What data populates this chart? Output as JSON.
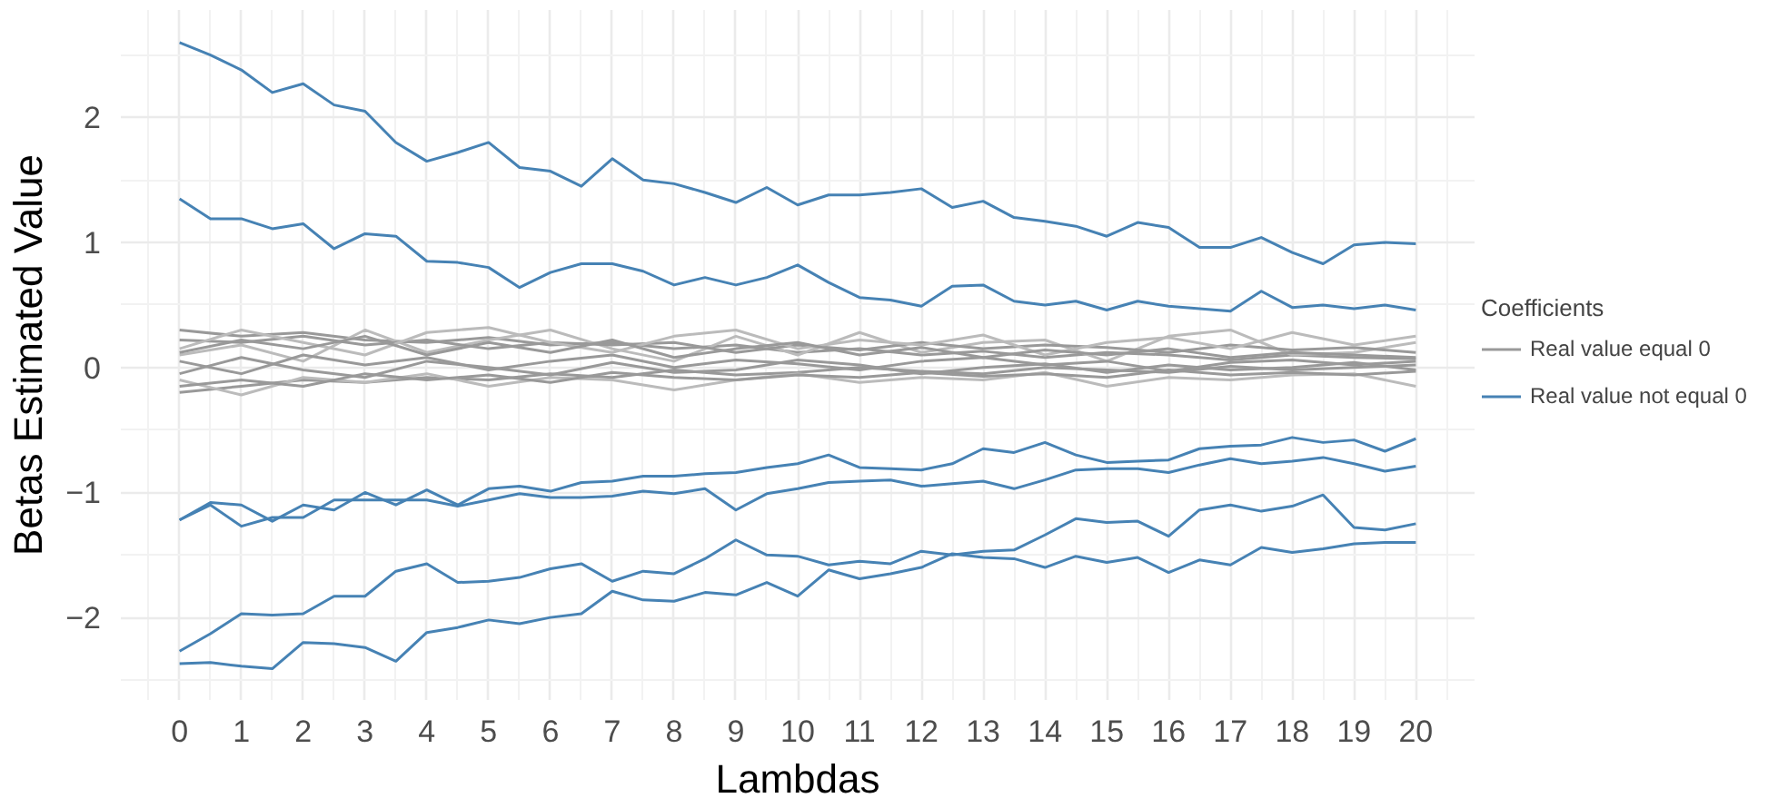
{
  "chart_data": {
    "type": "line",
    "xlabel": "Lambdas",
    "ylabel": "Betas Estimated Value",
    "legend_title": "Coefficients",
    "legend": "right",
    "grid": true,
    "x": [
      0,
      0.5,
      1,
      1.5,
      2,
      2.5,
      3,
      3.5,
      4,
      4.5,
      5,
      5.5,
      6,
      6.5,
      7,
      7.5,
      8,
      8.5,
      9,
      9.5,
      10,
      10.5,
      11,
      11.5,
      12,
      12.5,
      13,
      13.5,
      14,
      14.5,
      15,
      15.5,
      16,
      16.5,
      17,
      17.5,
      18,
      18.5,
      19,
      19.5,
      20
    ],
    "xlim": [
      -0.95,
      20.95
    ],
    "xticks": [
      0,
      1,
      2,
      3,
      4,
      5,
      6,
      7,
      8,
      9,
      10,
      11,
      12,
      13,
      14,
      15,
      16,
      17,
      18,
      19,
      20
    ],
    "ylim": [
      -2.66,
      2.86
    ],
    "yticks": [
      {
        "value": -2,
        "label": "−2"
      },
      {
        "value": -1,
        "label": "−1"
      },
      0,
      1,
      2
    ],
    "series": [
      {
        "name": "Real value equal 0",
        "color": "#999999",
        "x": [
          0,
          1,
          2,
          3,
          4,
          5,
          6,
          7,
          8,
          9,
          10,
          11,
          12,
          13,
          14,
          15,
          16,
          17,
          18,
          19,
          20
        ],
        "values": [
          0.3,
          0.25,
          0.28,
          0.22,
          0.2,
          0.24,
          0.18,
          0.2,
          0.15,
          0.18,
          0.12,
          0.15,
          0.1,
          0.13,
          0.08,
          0.12,
          0.1,
          0.06,
          0.1,
          0.08,
          0.07
        ]
      },
      {
        "color": "#999999",
        "x": [
          0,
          1,
          2,
          3,
          4,
          5,
          6,
          7,
          8,
          9,
          10,
          11,
          12,
          13,
          14,
          15,
          16,
          17,
          18,
          19,
          20
        ],
        "values": [
          -0.2,
          -0.15,
          -0.1,
          -0.12,
          -0.08,
          -0.1,
          -0.05,
          -0.08,
          -0.02,
          -0.06,
          -0.04,
          0.0,
          -0.03,
          -0.05,
          0.0,
          -0.02,
          -0.04,
          0.01,
          -0.02,
          0.0,
          0.02
        ]
      },
      {
        "color": "#bbbbbb",
        "x": [
          0,
          1,
          2,
          3,
          4,
          5,
          6,
          7,
          8,
          9,
          10,
          11,
          12,
          13,
          14,
          15,
          16,
          17,
          18,
          19,
          20
        ],
        "values": [
          0.1,
          0.18,
          0.05,
          0.3,
          0.12,
          0.22,
          0.3,
          0.15,
          0.05,
          0.25,
          0.1,
          0.28,
          0.12,
          0.2,
          0.22,
          0.05,
          0.25,
          0.3,
          0.1,
          0.12,
          0.2
        ]
      },
      {
        "color": "#999999",
        "x": [
          0,
          1,
          2,
          3,
          4,
          5,
          6,
          7,
          8,
          9,
          10,
          11,
          12,
          13,
          14,
          15,
          16,
          17,
          18,
          19,
          20
        ],
        "values": [
          0.05,
          -0.05,
          0.1,
          0.02,
          0.08,
          -0.02,
          0.05,
          0.1,
          0.0,
          0.06,
          0.03,
          -0.02,
          0.05,
          0.08,
          0.02,
          0.05,
          -0.03,
          0.04,
          0.06,
          0.02,
          0.05
        ]
      },
      {
        "color": "#bbbbbb",
        "x": [
          0,
          1,
          2,
          3,
          4,
          5,
          6,
          7,
          8,
          9,
          10,
          11,
          12,
          13,
          14,
          15,
          16,
          17,
          18,
          19,
          20
        ],
        "values": [
          -0.1,
          -0.22,
          -0.08,
          -0.12,
          -0.05,
          -0.15,
          -0.08,
          -0.1,
          -0.18,
          -0.1,
          -0.05,
          -0.12,
          -0.08,
          -0.1,
          -0.04,
          -0.15,
          -0.08,
          -0.1,
          -0.06,
          -0.05,
          -0.15
        ]
      },
      {
        "color": "#999999",
        "x": [
          0,
          1,
          2,
          3,
          4,
          5,
          6,
          7,
          8,
          9,
          10,
          11,
          12,
          13,
          14,
          15,
          16,
          17,
          18,
          19,
          20
        ],
        "values": [
          0.22,
          0.2,
          0.25,
          0.18,
          0.22,
          0.15,
          0.2,
          0.18,
          0.2,
          0.12,
          0.18,
          0.14,
          0.2,
          0.15,
          0.18,
          0.16,
          0.12,
          0.18,
          0.14,
          0.16,
          0.12
        ]
      },
      {
        "color": "#999999",
        "x": [
          0,
          1,
          2,
          3,
          4,
          5,
          6,
          7,
          8,
          9,
          10,
          11,
          12,
          13,
          14,
          15,
          16,
          17,
          18,
          19,
          20
        ],
        "values": [
          -0.05,
          0.08,
          -0.02,
          -0.08,
          0.05,
          0.0,
          -0.06,
          0.04,
          -0.04,
          -0.02,
          0.06,
          0.02,
          -0.05,
          0.0,
          0.03,
          -0.04,
          0.02,
          -0.02,
          0.0,
          0.04,
          -0.02
        ]
      },
      {
        "color": "#bbbbbb",
        "x": [
          0,
          1,
          2,
          3,
          4,
          5,
          6,
          7,
          8,
          9,
          10,
          11,
          12,
          13,
          14,
          15,
          16,
          17,
          18,
          19,
          20
        ],
        "values": [
          0.15,
          0.3,
          0.2,
          0.1,
          0.28,
          0.32,
          0.2,
          0.12,
          0.25,
          0.3,
          0.15,
          0.22,
          0.18,
          0.26,
          0.1,
          0.2,
          0.24,
          0.15,
          0.28,
          0.18,
          0.25
        ]
      },
      {
        "color": "#999999",
        "x": [
          0,
          1,
          2,
          3,
          4,
          5,
          6,
          7,
          8,
          9,
          10,
          11,
          12,
          13,
          14,
          15,
          16,
          17,
          18,
          19,
          20
        ],
        "values": [
          -0.15,
          -0.1,
          -0.15,
          -0.05,
          -0.1,
          -0.06,
          -0.12,
          -0.04,
          -0.08,
          -0.1,
          -0.06,
          -0.08,
          -0.04,
          -0.07,
          -0.05,
          -0.08,
          -0.02,
          -0.06,
          -0.04,
          -0.06,
          -0.03
        ]
      },
      {
        "color": "#999999",
        "x": [
          0,
          1,
          2,
          3,
          4,
          5,
          6,
          7,
          8,
          9,
          10,
          11,
          12,
          13,
          14,
          15,
          16,
          17,
          18,
          19,
          20
        ],
        "values": [
          0.12,
          0.22,
          0.15,
          0.25,
          0.1,
          0.2,
          0.12,
          0.22,
          0.08,
          0.15,
          0.2,
          0.1,
          0.16,
          0.08,
          0.14,
          0.1,
          0.15,
          0.08,
          0.12,
          0.1,
          0.08
        ]
      },
      {
        "name": "Real value not equal 0",
        "color": "#4682b4",
        "values": [
          2.6,
          2.5,
          2.38,
          2.2,
          2.27,
          2.1,
          2.05,
          1.8,
          1.65,
          1.72,
          1.8,
          1.6,
          1.57,
          1.45,
          1.67,
          1.5,
          1.47,
          1.4,
          1.32,
          1.44,
          1.3,
          1.38,
          1.38,
          1.4,
          1.43,
          1.28,
          1.33,
          1.2,
          1.17,
          1.13,
          1.05,
          1.16,
          1.12,
          0.96,
          0.96,
          1.04,
          0.92,
          0.83,
          0.98,
          1.0,
          0.99
        ]
      },
      {
        "color": "#4682b4",
        "values": [
          1.35,
          1.19,
          1.19,
          1.11,
          1.15,
          0.95,
          1.07,
          1.05,
          0.85,
          0.84,
          0.8,
          0.64,
          0.76,
          0.83,
          0.83,
          0.77,
          0.66,
          0.72,
          0.66,
          0.72,
          0.82,
          0.68,
          0.56,
          0.54,
          0.49,
          0.65,
          0.66,
          0.53,
          0.5,
          0.53,
          0.46,
          0.53,
          0.49,
          0.47,
          0.45,
          0.61,
          0.48,
          0.5,
          0.47,
          0.5,
          0.46
        ]
      },
      {
        "color": "#4682b4",
        "values": [
          -1.22,
          -1.08,
          -1.1,
          -1.23,
          -1.1,
          -1.14,
          -1.0,
          -1.1,
          -0.98,
          -1.1,
          -0.97,
          -0.95,
          -0.99,
          -0.92,
          -0.91,
          -0.87,
          -0.87,
          -0.85,
          -0.84,
          -0.8,
          -0.77,
          -0.7,
          -0.8,
          -0.81,
          -0.82,
          -0.77,
          -0.65,
          -0.68,
          -0.6,
          -0.7,
          -0.76,
          -0.75,
          -0.74,
          -0.65,
          -0.63,
          -0.62,
          -0.56,
          -0.6,
          -0.58,
          -0.67,
          -0.57
        ]
      },
      {
        "color": "#4682b4",
        "values": [
          -1.22,
          -1.1,
          -1.27,
          -1.2,
          -1.2,
          -1.06,
          -1.06,
          -1.06,
          -1.06,
          -1.11,
          -1.06,
          -1.01,
          -1.04,
          -1.04,
          -1.03,
          -0.99,
          -1.01,
          -0.97,
          -1.14,
          -1.01,
          -0.97,
          -0.92,
          -0.91,
          -0.9,
          -0.95,
          -0.93,
          -0.91,
          -0.97,
          -0.9,
          -0.82,
          -0.81,
          -0.81,
          -0.84,
          -0.78,
          -0.73,
          -0.77,
          -0.75,
          -0.72,
          -0.77,
          -0.83,
          -0.79
        ]
      },
      {
        "color": "#4682b4",
        "values": [
          -2.27,
          -2.13,
          -1.97,
          -1.98,
          -1.97,
          -1.83,
          -1.83,
          -1.63,
          -1.57,
          -1.72,
          -1.71,
          -1.68,
          -1.61,
          -1.57,
          -1.71,
          -1.63,
          -1.65,
          -1.53,
          -1.38,
          -1.5,
          -1.51,
          -1.58,
          -1.55,
          -1.57,
          -1.47,
          -1.5,
          -1.47,
          -1.46,
          -1.34,
          -1.21,
          -1.24,
          -1.23,
          -1.35,
          -1.14,
          -1.1,
          -1.15,
          -1.11,
          -1.02,
          -1.28,
          -1.3,
          -1.25
        ]
      },
      {
        "color": "#4682b4",
        "values": [
          -2.37,
          -2.36,
          -2.39,
          -2.41,
          -2.2,
          -2.21,
          -2.24,
          -2.35,
          -2.12,
          -2.08,
          -2.02,
          -2.05,
          -2.0,
          -1.97,
          -1.79,
          -1.86,
          -1.87,
          -1.8,
          -1.82,
          -1.72,
          -1.83,
          -1.62,
          -1.69,
          -1.65,
          -1.6,
          -1.49,
          -1.52,
          -1.53,
          -1.6,
          -1.51,
          -1.56,
          -1.52,
          -1.64,
          -1.54,
          -1.58,
          -1.44,
          -1.48,
          -1.45,
          -1.41,
          -1.4,
          -1.4
        ]
      }
    ]
  }
}
